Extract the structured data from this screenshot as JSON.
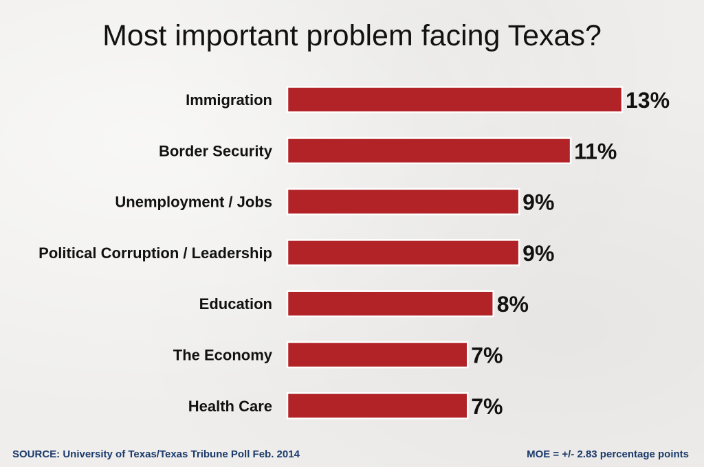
{
  "chart_data": {
    "type": "bar",
    "orientation": "horizontal",
    "title": "Most important problem facing Texas?",
    "categories": [
      "Immigration",
      "Border Security",
      "Unemployment / Jobs",
      "Political Corruption / Leadership",
      "Education",
      "The Economy",
      "Health Care"
    ],
    "values": [
      13,
      11,
      9,
      9,
      8,
      7,
      7
    ],
    "value_labels": [
      "13%",
      "11%",
      "9%",
      "9%",
      "8%",
      "7%",
      "7%"
    ],
    "value_unit": "%",
    "xlim": [
      0,
      13
    ],
    "grid": false,
    "legend": "none",
    "bar_color": "#b22327"
  },
  "footer": {
    "source": "SOURCE: University of Texas/Texas Tribune Poll Feb. 2014",
    "moe": "MOE = +/- 2.83 percentage points"
  }
}
